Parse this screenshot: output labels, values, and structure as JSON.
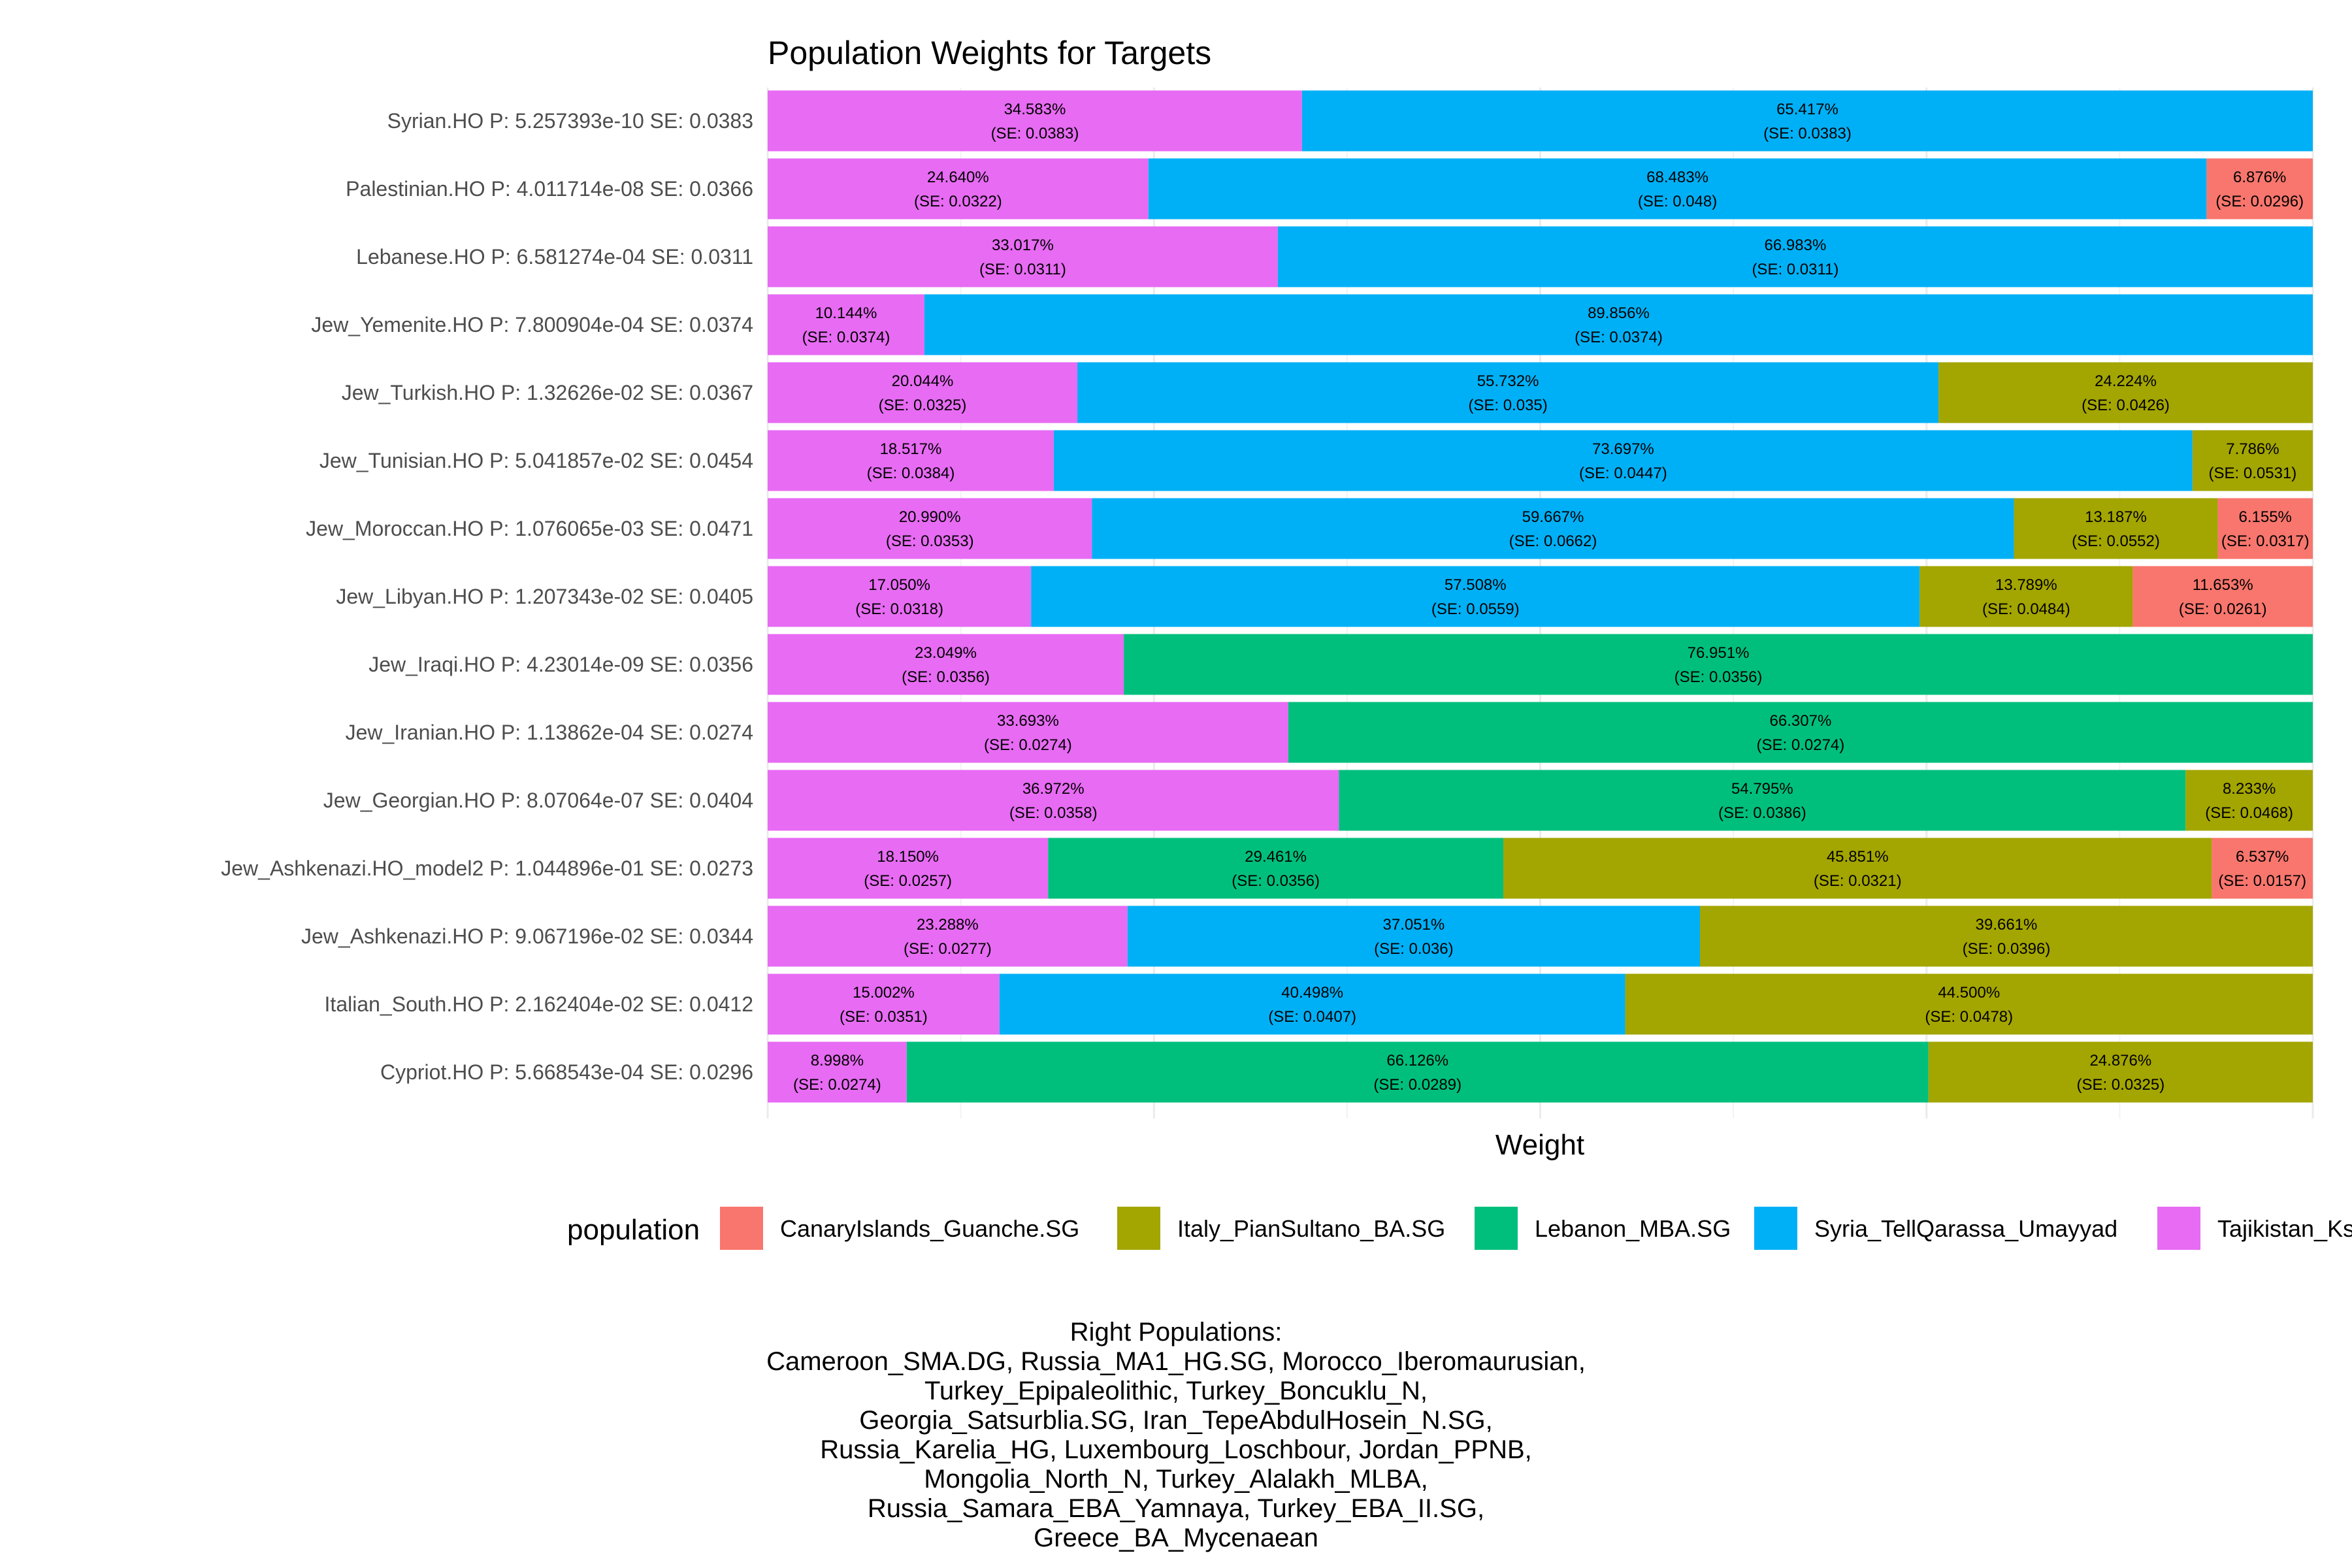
{
  "chart_data": {
    "type": "bar",
    "orientation": "horizontal",
    "stacked": true,
    "title": "Population Weights for Targets",
    "xlabel": "Weight",
    "ylabel": "",
    "xlim": [
      0,
      1
    ],
    "grid": true,
    "legend_title": "population",
    "legend_position": "bottom",
    "populations": [
      {
        "name": "CanaryIslands_Guanche.SG",
        "color": "#F8766D"
      },
      {
        "name": "Italy_PianSultano_BA.SG",
        "color": "#A3A500"
      },
      {
        "name": "Lebanon_MBA.SG",
        "color": "#00BF7D"
      },
      {
        "name": "Syria_TellQarassa_Umayyad",
        "color": "#00B0F6"
      },
      {
        "name": "Tajikistan_Ks",
        "color": "#E76BF3"
      }
    ],
    "rows": [
      {
        "label": "Syrian.HO P: 5.257393e-10 SE: 0.0383",
        "segments": [
          {
            "pop": "Tajikistan_Ks",
            "value": 34.583,
            "text": "34.583%",
            "se": "(SE: 0.0383)"
          },
          {
            "pop": "Syria_TellQarassa_Umayyad",
            "value": 65.417,
            "text": "65.417%",
            "se": "(SE: 0.0383)"
          }
        ]
      },
      {
        "label": "Palestinian.HO P: 4.011714e-08 SE: 0.0366",
        "segments": [
          {
            "pop": "Tajikistan_Ks",
            "value": 24.64,
            "text": "24.640%",
            "se": "(SE: 0.0322)"
          },
          {
            "pop": "Syria_TellQarassa_Umayyad",
            "value": 68.483,
            "text": "68.483%",
            "se": "(SE: 0.048)"
          },
          {
            "pop": "CanaryIslands_Guanche.SG",
            "value": 6.876,
            "text": "6.876%",
            "se": "(SE: 0.0296)"
          }
        ]
      },
      {
        "label": "Lebanese.HO P: 6.581274e-04 SE: 0.0311",
        "segments": [
          {
            "pop": "Tajikistan_Ks",
            "value": 33.017,
            "text": "33.017%",
            "se": "(SE: 0.0311)"
          },
          {
            "pop": "Syria_TellQarassa_Umayyad",
            "value": 66.983,
            "text": "66.983%",
            "se": "(SE: 0.0311)"
          }
        ]
      },
      {
        "label": "Jew_Yemenite.HO P: 7.800904e-04 SE: 0.0374",
        "segments": [
          {
            "pop": "Tajikistan_Ks",
            "value": 10.144,
            "text": "10.144%",
            "se": "(SE: 0.0374)"
          },
          {
            "pop": "Syria_TellQarassa_Umayyad",
            "value": 89.856,
            "text": "89.856%",
            "se": "(SE: 0.0374)"
          }
        ]
      },
      {
        "label": "Jew_Turkish.HO P: 1.32626e-02 SE: 0.0367",
        "segments": [
          {
            "pop": "Tajikistan_Ks",
            "value": 20.044,
            "text": "20.044%",
            "se": "(SE: 0.0325)"
          },
          {
            "pop": "Syria_TellQarassa_Umayyad",
            "value": 55.732,
            "text": "55.732%",
            "se": "(SE: 0.035)"
          },
          {
            "pop": "Italy_PianSultano_BA.SG",
            "value": 24.224,
            "text": "24.224%",
            "se": "(SE: 0.0426)"
          }
        ]
      },
      {
        "label": "Jew_Tunisian.HO P: 5.041857e-02 SE: 0.0454",
        "segments": [
          {
            "pop": "Tajikistan_Ks",
            "value": 18.517,
            "text": "18.517%",
            "se": "(SE: 0.0384)"
          },
          {
            "pop": "Syria_TellQarassa_Umayyad",
            "value": 73.697,
            "text": "73.697%",
            "se": "(SE: 0.0447)"
          },
          {
            "pop": "Italy_PianSultano_BA.SG",
            "value": 7.786,
            "text": "7.786%",
            "se": "(SE: 0.0531)"
          }
        ]
      },
      {
        "label": "Jew_Moroccan.HO P: 1.076065e-03 SE: 0.0471",
        "segments": [
          {
            "pop": "Tajikistan_Ks",
            "value": 20.99,
            "text": "20.990%",
            "se": "(SE: 0.0353)"
          },
          {
            "pop": "Syria_TellQarassa_Umayyad",
            "value": 59.667,
            "text": "59.667%",
            "se": "(SE: 0.0662)"
          },
          {
            "pop": "Italy_PianSultano_BA.SG",
            "value": 13.187,
            "text": "13.187%",
            "se": "(SE: 0.0552)"
          },
          {
            "pop": "CanaryIslands_Guanche.SG",
            "value": 6.155,
            "text": "6.155%",
            "se": "(SE: 0.0317)"
          }
        ]
      },
      {
        "label": "Jew_Libyan.HO P: 1.207343e-02 SE: 0.0405",
        "segments": [
          {
            "pop": "Tajikistan_Ks",
            "value": 17.05,
            "text": "17.050%",
            "se": "(SE: 0.0318)"
          },
          {
            "pop": "Syria_TellQarassa_Umayyad",
            "value": 57.508,
            "text": "57.508%",
            "se": "(SE: 0.0559)"
          },
          {
            "pop": "Italy_PianSultano_BA.SG",
            "value": 13.789,
            "text": "13.789%",
            "se": "(SE: 0.0484)"
          },
          {
            "pop": "CanaryIslands_Guanche.SG",
            "value": 11.653,
            "text": "11.653%",
            "se": "(SE: 0.0261)"
          }
        ]
      },
      {
        "label": "Jew_Iraqi.HO P: 4.23014e-09 SE: 0.0356",
        "segments": [
          {
            "pop": "Tajikistan_Ks",
            "value": 23.049,
            "text": "23.049%",
            "se": "(SE: 0.0356)"
          },
          {
            "pop": "Lebanon_MBA.SG",
            "value": 76.951,
            "text": "76.951%",
            "se": "(SE: 0.0356)"
          }
        ]
      },
      {
        "label": "Jew_Iranian.HO P: 1.13862e-04 SE: 0.0274",
        "segments": [
          {
            "pop": "Tajikistan_Ks",
            "value": 33.693,
            "text": "33.693%",
            "se": "(SE: 0.0274)"
          },
          {
            "pop": "Lebanon_MBA.SG",
            "value": 66.307,
            "text": "66.307%",
            "se": "(SE: 0.0274)"
          }
        ]
      },
      {
        "label": "Jew_Georgian.HO P: 8.07064e-07 SE: 0.0404",
        "segments": [
          {
            "pop": "Tajikistan_Ks",
            "value": 36.972,
            "text": "36.972%",
            "se": "(SE: 0.0358)"
          },
          {
            "pop": "Lebanon_MBA.SG",
            "value": 54.795,
            "text": "54.795%",
            "se": "(SE: 0.0386)"
          },
          {
            "pop": "Italy_PianSultano_BA.SG",
            "value": 8.233,
            "text": "8.233%",
            "se": "(SE: 0.0468)"
          }
        ]
      },
      {
        "label": "Jew_Ashkenazi.HO_model2 P: 1.044896e-01 SE: 0.0273",
        "segments": [
          {
            "pop": "Tajikistan_Ks",
            "value": 18.15,
            "text": "18.150%",
            "se": "(SE: 0.0257)"
          },
          {
            "pop": "Lebanon_MBA.SG",
            "value": 29.461,
            "text": "29.461%",
            "se": "(SE: 0.0356)"
          },
          {
            "pop": "Italy_PianSultano_BA.SG",
            "value": 45.851,
            "text": "45.851%",
            "se": "(SE: 0.0321)"
          },
          {
            "pop": "CanaryIslands_Guanche.SG",
            "value": 6.537,
            "text": "6.537%",
            "se": "(SE: 0.0157)"
          }
        ]
      },
      {
        "label": "Jew_Ashkenazi.HO P: 9.067196e-02 SE: 0.0344",
        "segments": [
          {
            "pop": "Tajikistan_Ks",
            "value": 23.288,
            "text": "23.288%",
            "se": "(SE: 0.0277)"
          },
          {
            "pop": "Syria_TellQarassa_Umayyad",
            "value": 37.051,
            "text": "37.051%",
            "se": "(SE: 0.036)"
          },
          {
            "pop": "Italy_PianSultano_BA.SG",
            "value": 39.661,
            "text": "39.661%",
            "se": "(SE: 0.0396)"
          }
        ]
      },
      {
        "label": "Italian_South.HO P: 2.162404e-02 SE: 0.0412",
        "segments": [
          {
            "pop": "Tajikistan_Ks",
            "value": 15.002,
            "text": "15.002%",
            "se": "(SE: 0.0351)"
          },
          {
            "pop": "Syria_TellQarassa_Umayyad",
            "value": 40.498,
            "text": "40.498%",
            "se": "(SE: 0.0407)"
          },
          {
            "pop": "Italy_PianSultano_BA.SG",
            "value": 44.5,
            "text": "44.500%",
            "se": "(SE: 0.0478)"
          }
        ]
      },
      {
        "label": "Cypriot.HO P: 5.668543e-04 SE: 0.0296",
        "segments": [
          {
            "pop": "Tajikistan_Ks",
            "value": 8.998,
            "text": "8.998%",
            "se": "(SE: 0.0274)"
          },
          {
            "pop": "Lebanon_MBA.SG",
            "value": 66.126,
            "text": "66.126%",
            "se": "(SE: 0.0289)"
          },
          {
            "pop": "Italy_PianSultano_BA.SG",
            "value": 24.876,
            "text": "24.876%",
            "se": "(SE: 0.0325)"
          }
        ]
      }
    ]
  },
  "caption": {
    "lines": [
      "Right Populations:",
      "Cameroon_SMA.DG, Russia_MA1_HG.SG, Morocco_Iberomaurusian,",
      "Turkey_Epipaleolithic, Turkey_Boncuklu_N,",
      "Georgia_Satsurblia.SG, Iran_TepeAbdulHosein_N.SG,",
      "Russia_Karelia_HG, Luxembourg_Loschbour, Jordan_PPNB,",
      "Mongolia_North_N, Turkey_Alalakh_MLBA,",
      "Russia_Samara_EBA_Yamnaya, Turkey_EBA_II.SG,",
      "Greece_BA_Mycenaean"
    ]
  }
}
